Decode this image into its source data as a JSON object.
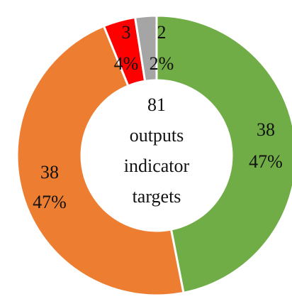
{
  "chart_data": {
    "type": "donut",
    "values": [
      38,
      38,
      3,
      2
    ],
    "percent_labels": [
      "47%",
      "47%",
      "4%",
      "2%"
    ],
    "colors": [
      "#70ad47",
      "#ed7d31",
      "#ff0000",
      "#a5a5a5"
    ],
    "total": 81,
    "center_text": [
      "outputs",
      "indicator",
      "targets"
    ]
  }
}
